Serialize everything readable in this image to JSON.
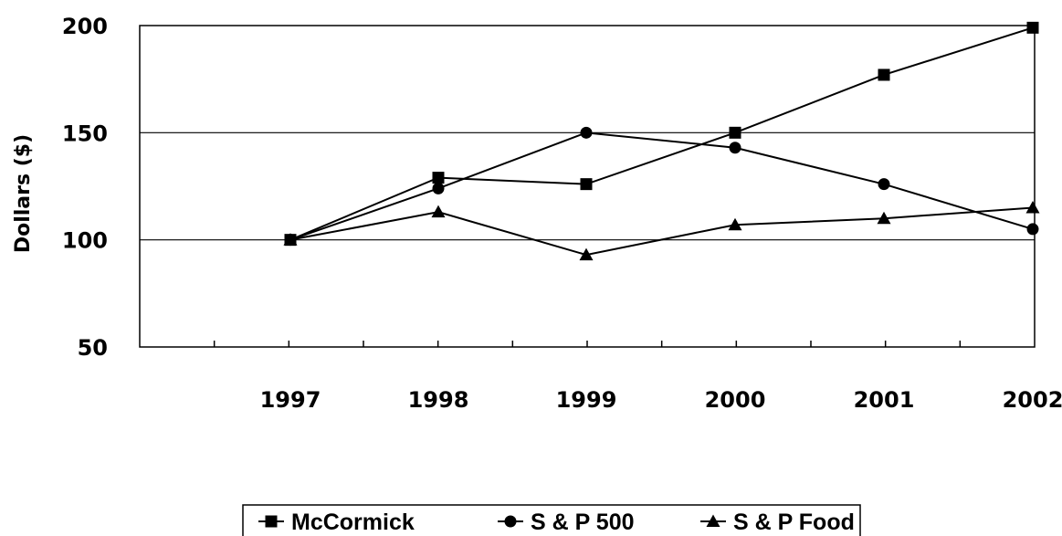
{
  "chart_data": {
    "type": "line",
    "title": "",
    "xlabel": "",
    "ylabel": "Dollars ($)",
    "x": [
      "1997",
      "1998",
      "1999",
      "2000",
      "2001",
      "2002"
    ],
    "ylim": [
      50,
      200
    ],
    "yticks": [
      "50",
      "100",
      "150",
      "200"
    ],
    "grid": "horizontal",
    "legend_position": "bottom",
    "series": [
      {
        "name": "McCormick",
        "marker": "square",
        "values": [
          100,
          129,
          126,
          150,
          177,
          199
        ]
      },
      {
        "name": "S & P 500",
        "marker": "circle",
        "values": [
          100,
          124,
          150,
          143,
          126,
          105
        ]
      },
      {
        "name": "S & P Food",
        "marker": "triangle",
        "values": [
          100,
          113,
          93,
          107,
          110,
          115
        ]
      }
    ]
  }
}
